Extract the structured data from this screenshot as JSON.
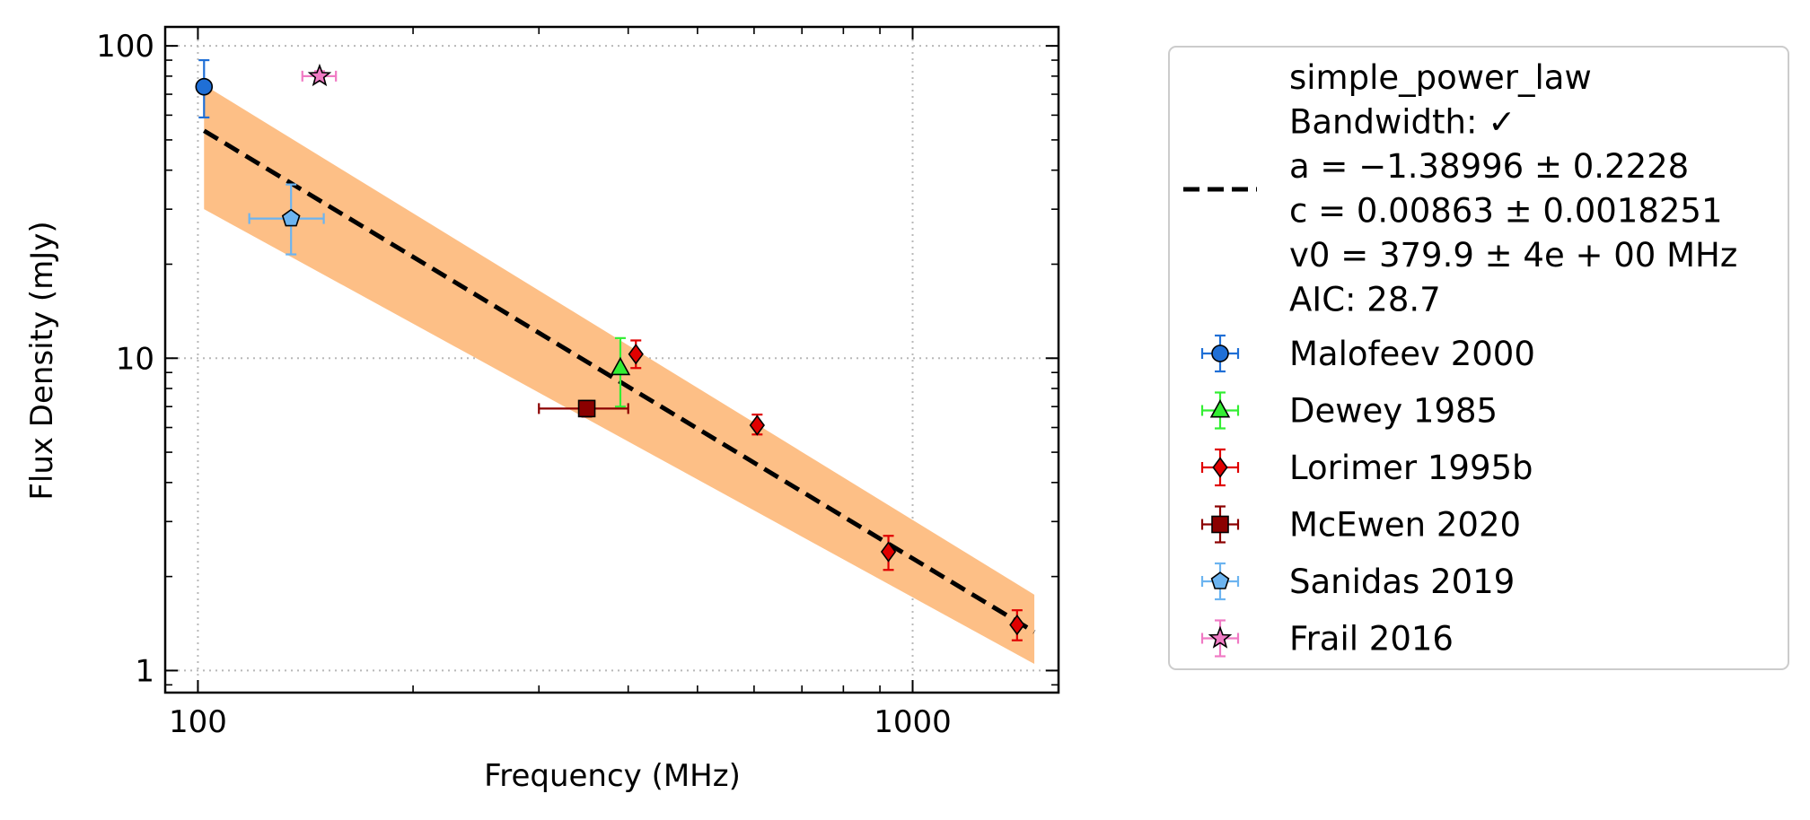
{
  "chart_data": {
    "type": "scatter",
    "xlabel": "Frequency (MHz)",
    "ylabel": "Flux Density (mJy)",
    "xscale": "log",
    "yscale": "log",
    "xlim": [
      90,
      1600
    ],
    "ylim": [
      0.85,
      115
    ],
    "x_ticks": [
      {
        "value": 100,
        "label": "100"
      },
      {
        "value": 1000,
        "label": "1000"
      }
    ],
    "y_ticks": [
      {
        "value": 1,
        "label": "1"
      },
      {
        "value": 10,
        "label": "10"
      },
      {
        "value": 100,
        "label": "100"
      }
    ],
    "grid": true,
    "legend_position": "outside-right",
    "fit": {
      "label_lines": [
        "simple_power_law",
        "Bandwidth: ✓",
        "a = −1.38996 ± 0.2228",
        "c = 0.00863 ± 0.0018251",
        "v0 = 379.9 ± 4e + 00 MHz",
        "AIC: 28.7"
      ],
      "x_range": [
        102,
        1480
      ],
      "line_points": [
        [
          102,
          53.5
        ],
        [
          1480,
          1.33
        ]
      ],
      "band_upper": [
        [
          102,
          75
        ],
        [
          1480,
          1.75
        ]
      ],
      "band_lower": [
        [
          102,
          30
        ],
        [
          1480,
          1.05
        ]
      ],
      "line_color": "#000000",
      "band_color": "#FDBF86"
    },
    "series": [
      {
        "name": "Malofeev 2000",
        "marker": "circle",
        "color": "#1f6fd6",
        "error_color": "#1f6fd6",
        "points": [
          {
            "x": 102,
            "y": 74,
            "ylo": 59,
            "yhi": 90
          }
        ]
      },
      {
        "name": "Dewey 1985",
        "marker": "triangle",
        "color": "#33ee33",
        "error_color": "#33ee33",
        "points": [
          {
            "x": 390,
            "y": 9.3,
            "ylo": 7.0,
            "yhi": 11.6
          }
        ]
      },
      {
        "name": "Lorimer 1995b",
        "marker": "diamond",
        "color": "#e00000",
        "error_color": "#e00000",
        "points": [
          {
            "x": 410,
            "y": 10.3,
            "ylo": 9.3,
            "yhi": 11.4
          },
          {
            "x": 606,
            "y": 6.1,
            "ylo": 5.7,
            "yhi": 6.6
          },
          {
            "x": 925,
            "y": 2.4,
            "ylo": 2.1,
            "yhi": 2.7
          },
          {
            "x": 1400,
            "y": 1.4,
            "ylo": 1.25,
            "yhi": 1.56
          }
        ]
      },
      {
        "name": "McEwen 2020",
        "marker": "square",
        "color": "#8b0000",
        "error_color": "#8b0000",
        "points": [
          {
            "x": 350,
            "y": 6.9,
            "ylo": 6.5,
            "yhi": 7.3,
            "xlo": 300,
            "xhi": 400
          }
        ]
      },
      {
        "name": "Sanidas 2019",
        "marker": "pentagon",
        "color": "#6cb4f0",
        "error_color": "#6cb4f0",
        "points": [
          {
            "x": 135,
            "y": 28,
            "ylo": 21.5,
            "yhi": 36,
            "xlo": 118,
            "xhi": 150
          }
        ]
      },
      {
        "name": "Frail 2016",
        "marker": "star",
        "color": "#f07ac4",
        "error_color": "#f07ac4",
        "points": [
          {
            "x": 148,
            "y": 80,
            "ylo": 77,
            "yhi": 83,
            "xlo": 140,
            "xhi": 156
          }
        ]
      }
    ]
  }
}
